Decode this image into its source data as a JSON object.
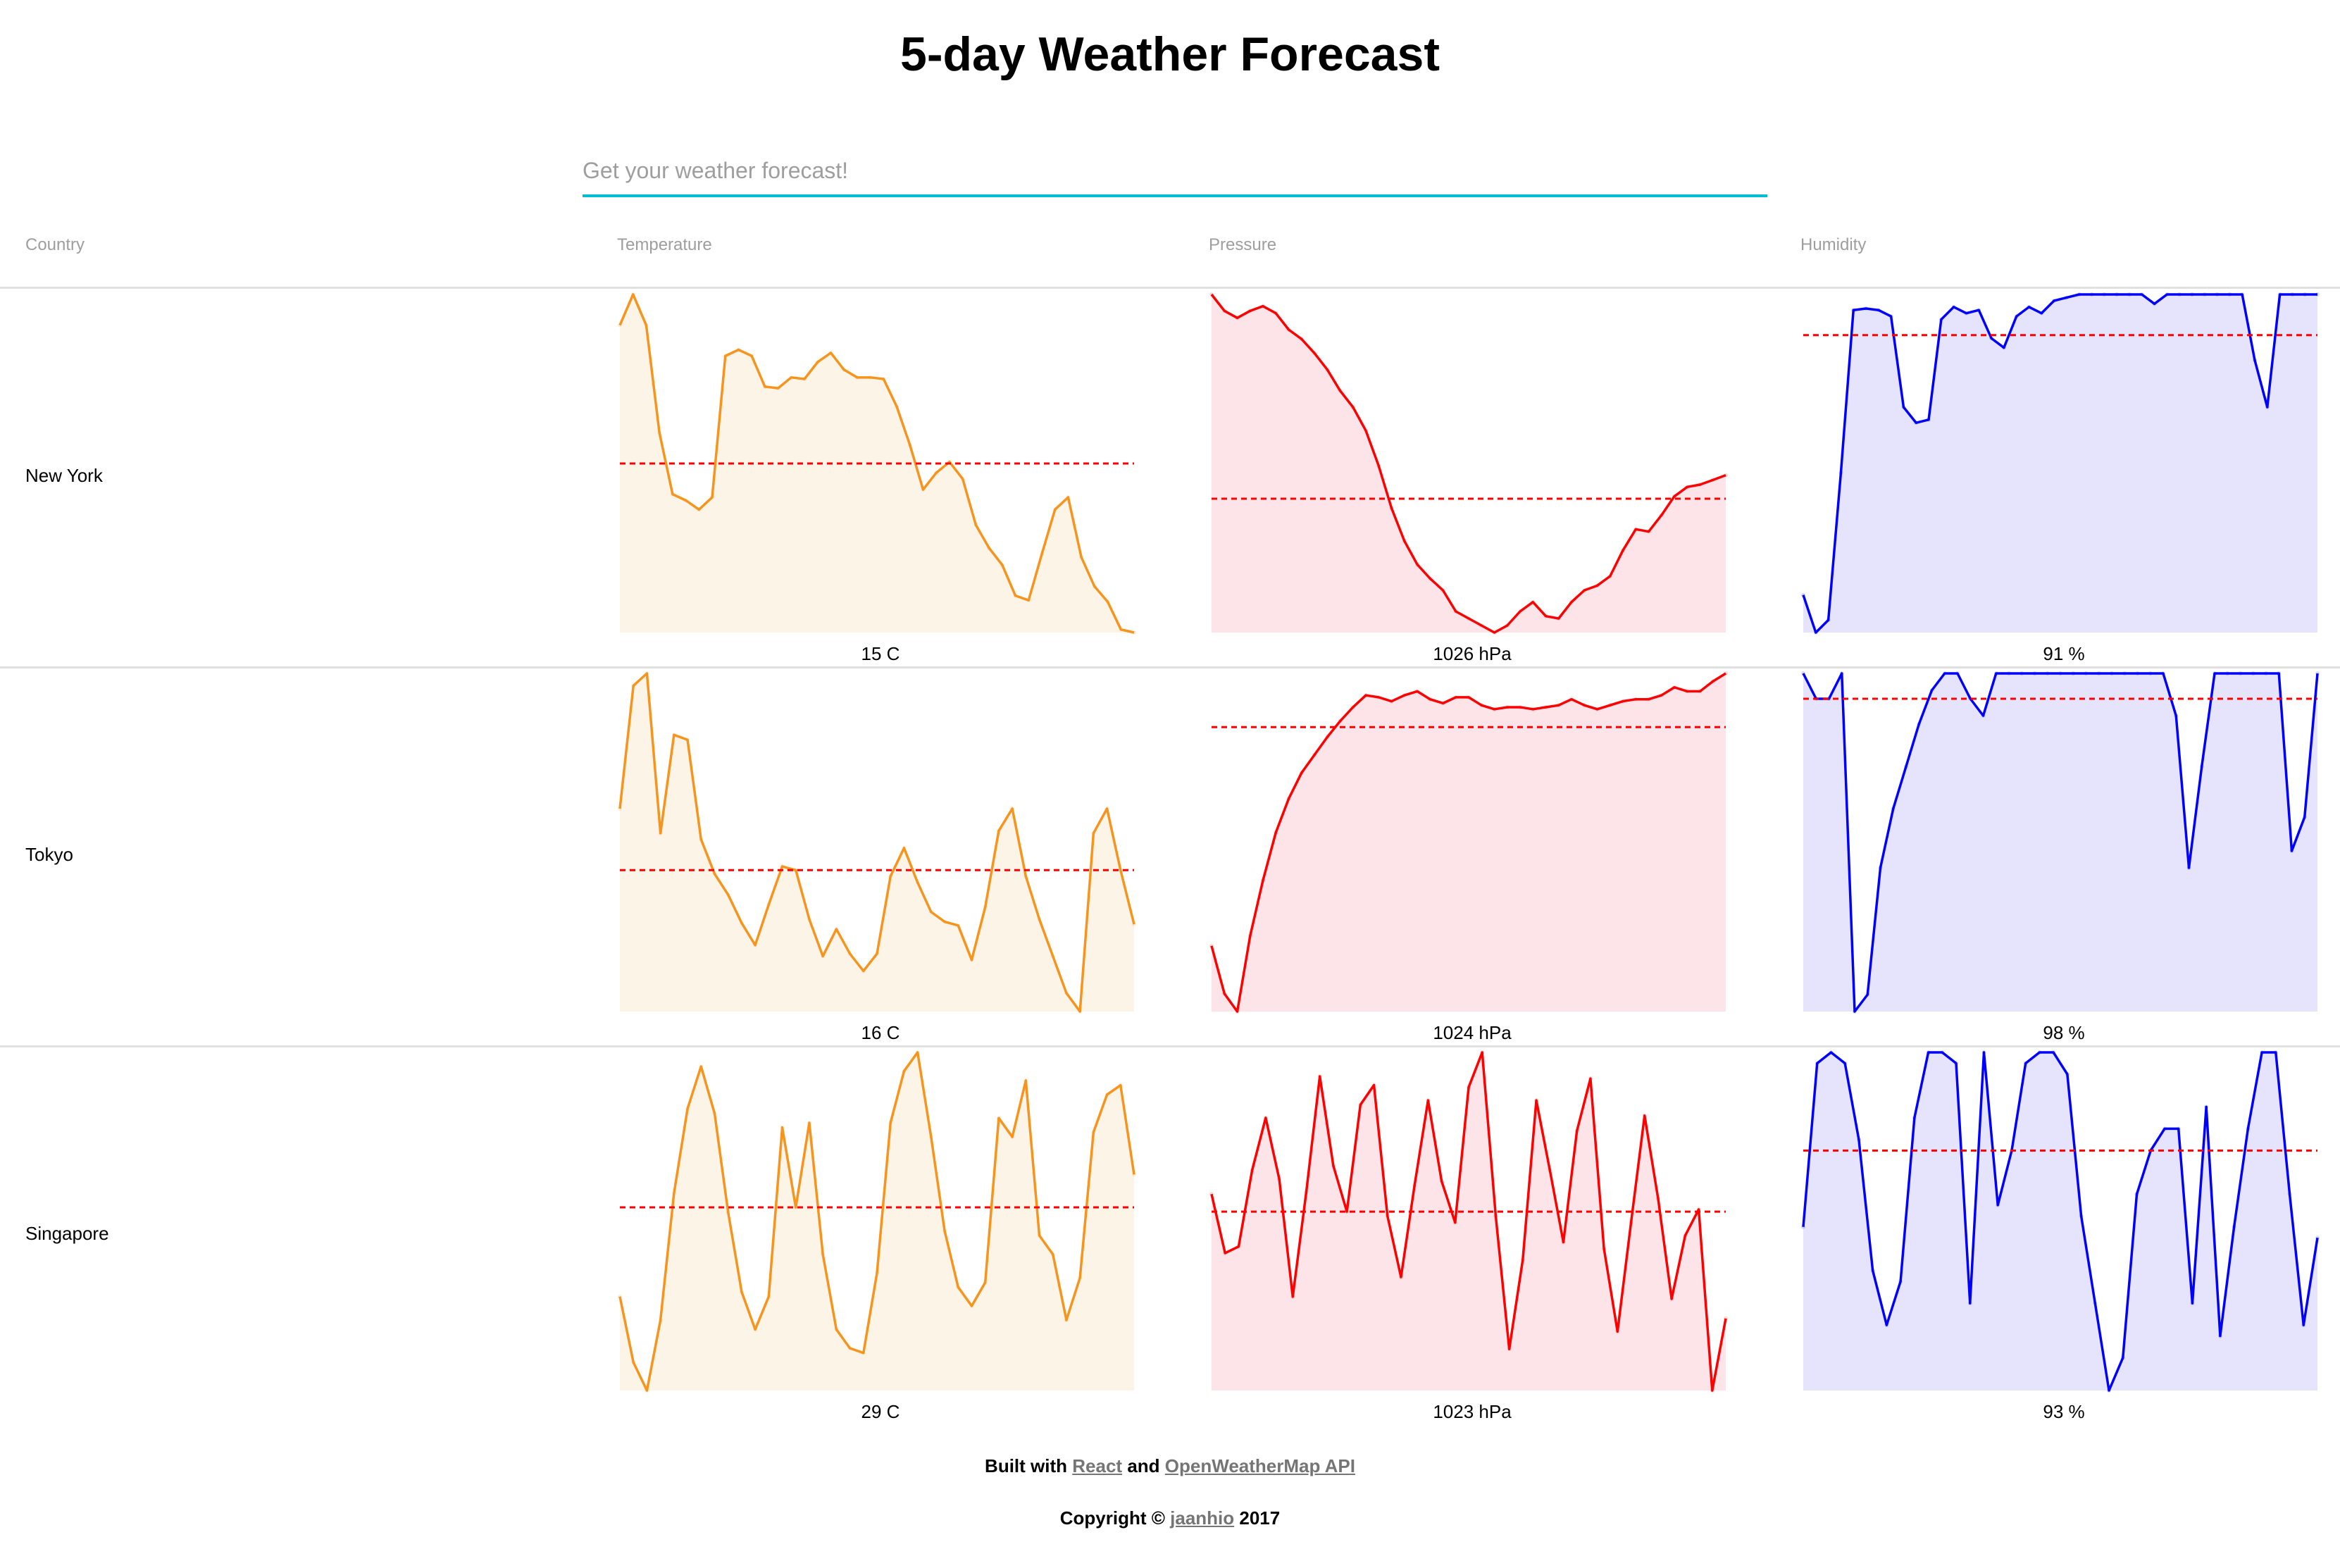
{
  "title": "5-day Weather Forecast",
  "search": {
    "placeholder": "Get your weather forecast!"
  },
  "columns": [
    "Country",
    "Temperature",
    "Pressure",
    "Humidity"
  ],
  "colors": {
    "temperature": {
      "line": "#f7941d",
      "fill": "#fdf4e8"
    },
    "pressure": {
      "line": "#ff0000",
      "fill": "#fde4e8"
    },
    "humidity": {
      "line": "#0000ff",
      "fill": "#e6e4fc"
    },
    "average_line": "#ff0000",
    "search_underline": "#00bcd4"
  },
  "rows": [
    {
      "city": "New York",
      "temperature": {
        "label": "15 C",
        "values": [
          20,
          22,
          20,
          13,
          9,
          8.6,
          8,
          8.8,
          18,
          18.4,
          18,
          16,
          15.9,
          16.6,
          16.5,
          17.6,
          18.2,
          17.1,
          16.6,
          16.6,
          16.5,
          14.7,
          12.2,
          9.3,
          10.4,
          11.1,
          10,
          7,
          5.5,
          4.4,
          2.4,
          2.1,
          5.1,
          8,
          8.8,
          4.9,
          3,
          2,
          0.2,
          0
        ],
        "mean": 11
      },
      "pressure": {
        "label": "1026 hPa",
        "values": [
          1035,
          1034.3,
          1034,
          1034.3,
          1034.5,
          1034.2,
          1033.5,
          1033.1,
          1032.5,
          1031.8,
          1030.9,
          1030.2,
          1029.2,
          1027.7,
          1025.9,
          1024.5,
          1023.5,
          1022.9,
          1022.4,
          1021.5,
          1021.2,
          1020.9,
          1020.6,
          1020.9,
          1021.5,
          1021.9,
          1021.3,
          1021.2,
          1021.9,
          1022.4,
          1022.6,
          1023,
          1024.1,
          1025,
          1024.9,
          1025.6,
          1026.4,
          1026.8,
          1026.9,
          1027.1,
          1027.3
        ],
        "mean": 1026.3
      },
      "humidity": {
        "label": "91 %",
        "values": [
          58,
          46,
          50,
          97,
          149,
          149.5,
          149,
          147,
          118,
          113,
          114,
          146,
          150,
          148,
          149,
          140,
          137,
          147,
          150,
          148,
          152,
          153,
          154,
          154,
          154,
          154,
          154,
          154,
          151,
          154,
          154,
          154,
          154,
          154,
          154,
          154,
          133,
          118,
          154,
          154,
          154,
          154
        ],
        "mean": 141
      }
    },
    {
      "city": "Tokyo",
      "temperature": {
        "label": "16 C",
        "values": [
          17,
          27,
          28,
          15,
          23,
          22.6,
          14.5,
          11.7,
          10,
          7.7,
          5.9,
          9.2,
          12.3,
          12,
          8,
          5,
          7.2,
          5.2,
          3.8,
          5.2,
          11.5,
          13.8,
          11,
          8.6,
          7.8,
          7.5,
          4.7,
          9,
          15.2,
          17,
          11.5,
          8,
          5,
          2,
          0.5,
          15,
          17,
          12,
          7.6
        ],
        "mean": 12
      },
      "pressure": {
        "label": "1024 hPa",
        "values": [
          1016,
          1013.6,
          1012.7,
          1016.5,
          1019.3,
          1021.7,
          1023.4,
          1024.7,
          1025.6,
          1026.5,
          1027.3,
          1028,
          1028.6,
          1028.5,
          1028.3,
          1028.6,
          1028.8,
          1028.4,
          1028.2,
          1028.5,
          1028.5,
          1028.1,
          1027.9,
          1028,
          1028,
          1027.9,
          1028,
          1028.1,
          1028.4,
          1028.1,
          1027.9,
          1028.1,
          1028.3,
          1028.4,
          1028.4,
          1028.6,
          1029,
          1028.8,
          1028.8,
          1029.3,
          1029.7
        ],
        "mean": 1027
      },
      "humidity": {
        "label": "98 %",
        "values": [
          100,
          97,
          97,
          100,
          60,
          62,
          77,
          84,
          89,
          94,
          98,
          100,
          100,
          97,
          95,
          100,
          100,
          100,
          100,
          100,
          100,
          100,
          100,
          100,
          100,
          100,
          100,
          100,
          100,
          95,
          77,
          89,
          100,
          100,
          100,
          100,
          100,
          100,
          79,
          83,
          100
        ],
        "mean": 97
      }
    },
    {
      "city": "Singapore",
      "temperature": {
        "label": "29 C",
        "values": [
          27.6,
          26.2,
          25.6,
          27.1,
          29.8,
          31.6,
          32.5,
          31.5,
          29.4,
          27.7,
          26.9,
          27.6,
          31.2,
          29.5,
          31.3,
          28.5,
          26.9,
          26.5,
          26.4,
          28.1,
          31.3,
          32.4,
          32.8,
          31,
          29,
          27.8,
          27.4,
          27.9,
          31.4,
          31,
          32.2,
          28.9,
          28.5,
          27.1,
          28,
          31.1,
          31.9,
          32.1,
          30.2
        ],
        "mean": 29.5
      },
      "pressure": {
        "label": "1023 hPa",
        "values": [
          1024.8,
          1022.1,
          1022.4,
          1025.9,
          1028.3,
          1025.5,
          1020.1,
          1024.9,
          1030.2,
          1026.1,
          1024,
          1028.9,
          1029.8,
          1023.8,
          1021,
          1025.2,
          1029.1,
          1025.4,
          1023.5,
          1029.7,
          1031.3,
          1023.8,
          1017.7,
          1021.8,
          1029.1,
          1025.9,
          1022.6,
          1027.7,
          1030.1,
          1022.3,
          1018.5,
          1023.5,
          1028.4,
          1024.6,
          1020,
          1022.9,
          1024.1,
          1015.8,
          1019.1
        ],
        "mean": 1024
      },
      "humidity": {
        "label": "93 %",
        "values": [
          84,
          99,
          100,
          99,
          92,
          80,
          75,
          79,
          94,
          100,
          100,
          99,
          77,
          100,
          86,
          91,
          99,
          100,
          100,
          98,
          85,
          77,
          69,
          72,
          87,
          91,
          93,
          93,
          77,
          95,
          74,
          84,
          93,
          100,
          100,
          87,
          75,
          83
        ],
        "mean": 91
      }
    }
  ],
  "footer": {
    "built_prefix": "Built with",
    "react_link": "React",
    "and_text": "and",
    "api_link": "OpenWeatherMap API",
    "copyright_prefix": "Copyright ©",
    "author_link": "jaanhio",
    "year": "2017"
  }
}
